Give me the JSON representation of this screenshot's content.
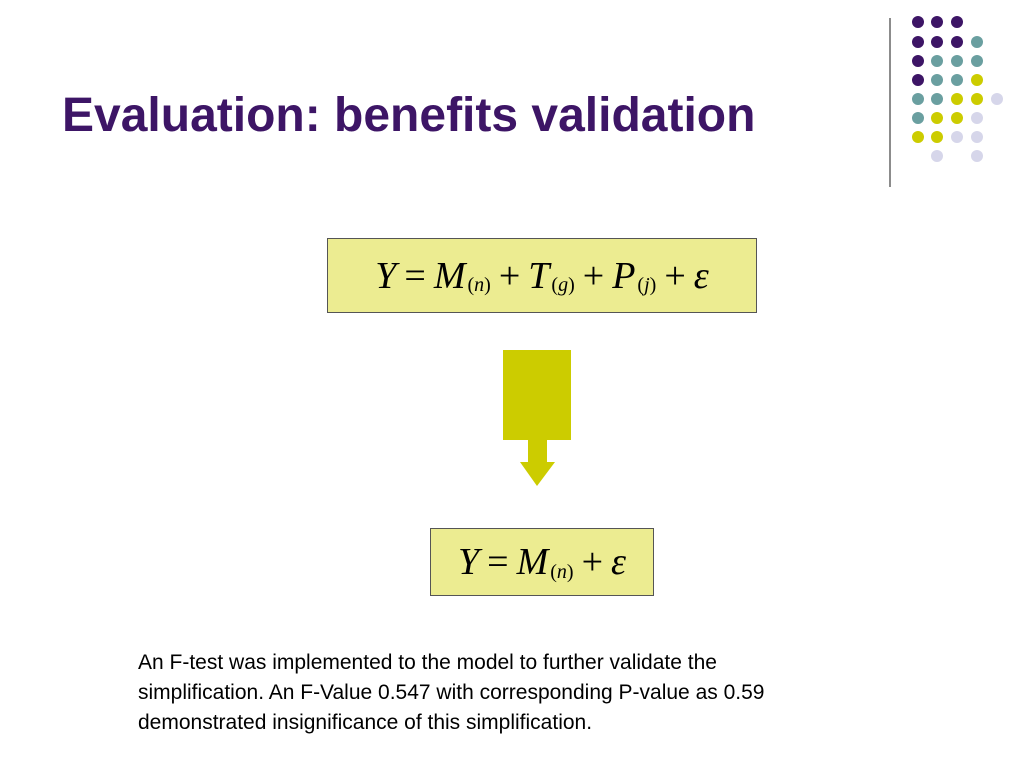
{
  "title": "Evaluation: benefits validation",
  "equations": [
    {
      "tokens": [
        {
          "base": "Y"
        },
        {
          "op": "="
        },
        {
          "base": "M",
          "sub": "n"
        },
        {
          "op": "+"
        },
        {
          "base": "T",
          "sub": "g"
        },
        {
          "op": "+"
        },
        {
          "base": "P",
          "sub": "j"
        },
        {
          "op": "+"
        },
        {
          "base": "ε"
        }
      ]
    },
    {
      "tokens": [
        {
          "base": "Y"
        },
        {
          "op": "="
        },
        {
          "base": "M",
          "sub": "n"
        },
        {
          "op": "+"
        },
        {
          "base": "ε"
        }
      ]
    }
  ],
  "paragraph": {
    "lines": [
      "An F-test was implemented to the model to further validate the",
      "simplification. An F-Value 0.547 with corresponding P-value as 0.59",
      "demonstrated insignificance of this simplification."
    ]
  }
}
